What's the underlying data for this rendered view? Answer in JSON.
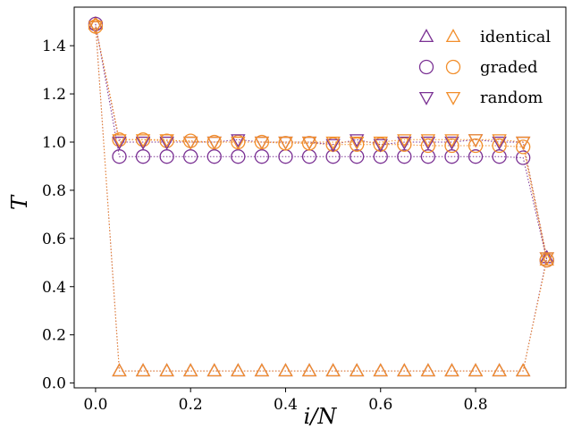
{
  "chart_data": {
    "type": "scatter",
    "title": "",
    "xlabel": "i/N",
    "ylabel": "T",
    "xlim": [
      -0.045,
      0.99
    ],
    "ylim": [
      -0.02,
      1.56
    ],
    "xticks": [
      0.0,
      0.2,
      0.4,
      0.6,
      0.8
    ],
    "xtick_labels": [
      "0.0",
      "0.2",
      "0.4",
      "0.6",
      "0.8"
    ],
    "yticks": [
      0.0,
      0.2,
      0.4,
      0.6,
      0.8,
      1.0,
      1.2,
      1.4
    ],
    "ytick_labels": [
      "0.0",
      "0.2",
      "0.4",
      "0.6",
      "0.8",
      "1.0",
      "1.2",
      "1.4"
    ],
    "grid": false,
    "legend_position": "top-right",
    "colors": {
      "purple": "#7b3294",
      "orange": "#f28e2b",
      "line": "#e06a2c"
    },
    "legend": [
      {
        "label": "identical",
        "marker": "triangle-up"
      },
      {
        "label": "graded",
        "marker": "circle"
      },
      {
        "label": "random",
        "marker": "triangle-down"
      }
    ],
    "x": [
      0.0,
      0.05,
      0.1,
      0.15,
      0.2,
      0.25,
      0.3,
      0.35,
      0.4,
      0.45,
      0.5,
      0.55,
      0.6,
      0.65,
      0.7,
      0.75,
      0.8,
      0.85,
      0.9,
      0.95
    ],
    "series": [
      {
        "marker": "triangle-up",
        "color": "purple",
        "values": [
          1.49,
          0.05,
          0.05,
          0.05,
          0.05,
          0.05,
          0.05,
          0.05,
          0.05,
          0.05,
          0.05,
          0.05,
          0.05,
          0.05,
          0.05,
          0.05,
          0.05,
          0.05,
          0.05,
          0.52
        ]
      },
      {
        "marker": "triangle-up",
        "color": "orange",
        "values": [
          1.49,
          0.05,
          0.05,
          0.05,
          0.05,
          0.05,
          0.05,
          0.05,
          0.05,
          0.05,
          0.05,
          0.05,
          0.05,
          0.05,
          0.05,
          0.05,
          0.05,
          0.05,
          0.05,
          0.51
        ]
      },
      {
        "marker": "circle",
        "color": "purple",
        "values": [
          1.49,
          0.94,
          0.94,
          0.94,
          0.94,
          0.94,
          0.94,
          0.94,
          0.94,
          0.94,
          0.94,
          0.94,
          0.94,
          0.94,
          0.94,
          0.94,
          0.94,
          0.94,
          0.935,
          0.51
        ]
      },
      {
        "marker": "circle",
        "color": "orange",
        "values": [
          1.48,
          1.01,
          1.01,
          1.005,
          1.005,
          1.0,
          1.0,
          1.0,
          0.995,
          0.995,
          0.99,
          0.99,
          0.99,
          0.99,
          0.985,
          0.985,
          0.985,
          0.985,
          0.98,
          0.51
        ]
      },
      {
        "marker": "triangle-down",
        "color": "purple",
        "values": [
          1.48,
          1.0,
          1.0,
          1.0,
          1.0,
          1.0,
          1.01,
          1.0,
          1.0,
          1.0,
          0.99,
          1.01,
          0.99,
          1.0,
          1.0,
          1.0,
          1.01,
          1.0,
          1.0,
          0.52
        ]
      },
      {
        "marker": "triangle-down",
        "color": "orange",
        "values": [
          1.48,
          1.01,
          1.01,
          1.01,
          1.0,
          1.0,
          1.0,
          1.0,
          1.0,
          1.0,
          1.0,
          1.0,
          1.0,
          1.01,
          1.01,
          1.01,
          1.01,
          1.01,
          1.0,
          0.52
        ]
      }
    ]
  }
}
